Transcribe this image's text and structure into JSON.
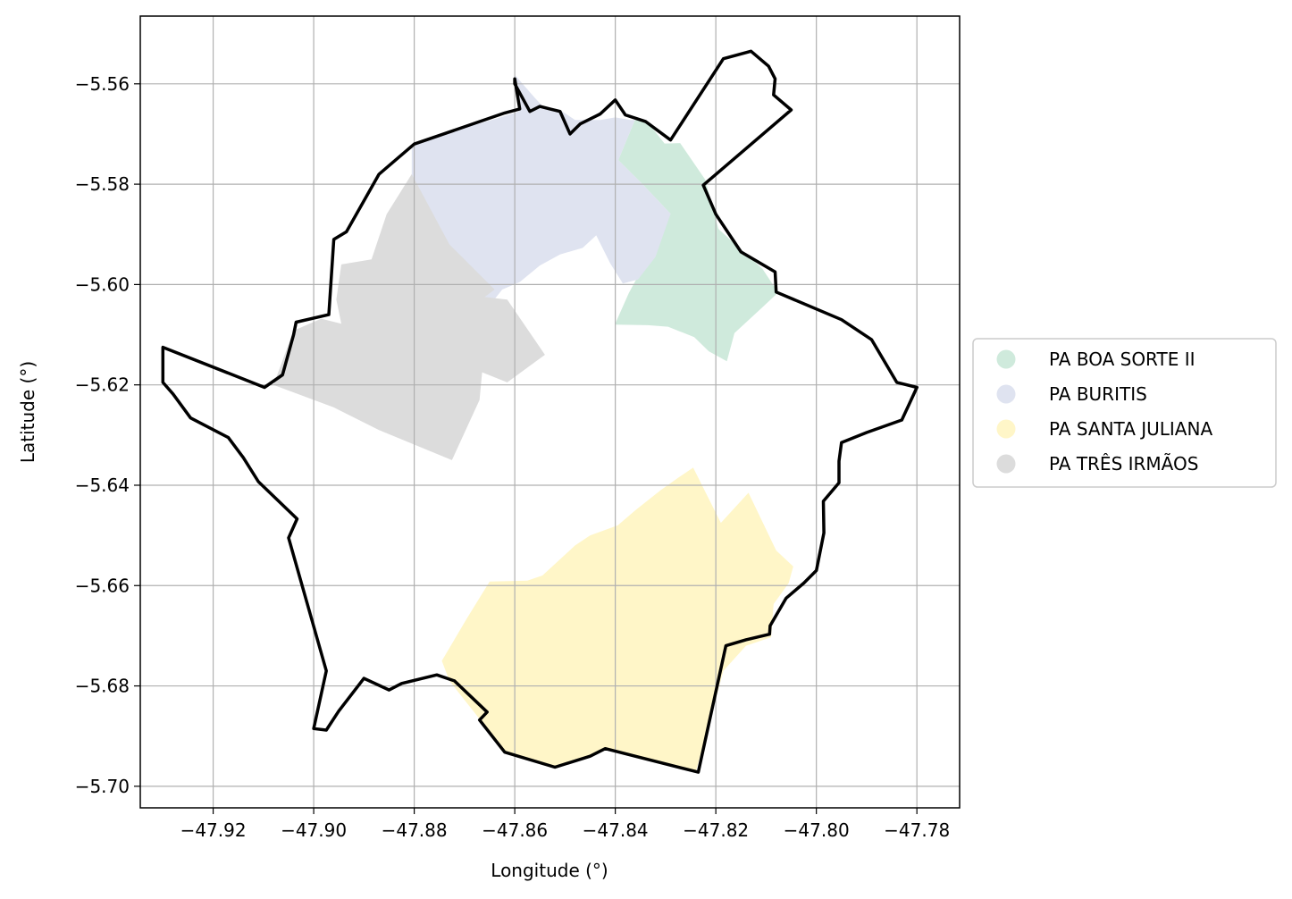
{
  "chart_data": {
    "type": "map",
    "xlabel": "Longitude (°)",
    "ylabel": "Latitude (°)",
    "xlim": [
      -47.9345,
      -47.7715
    ],
    "ylim": [
      -5.7043,
      -5.5465
    ],
    "grid": true,
    "legend_placement": "center-left outside",
    "x_ticks": [
      {
        "value": -47.92,
        "label": "−47.92"
      },
      {
        "value": -47.9,
        "label": "−47.90"
      },
      {
        "value": -47.88,
        "label": "−47.88"
      },
      {
        "value": -47.86,
        "label": "−47.86"
      },
      {
        "value": -47.84,
        "label": "−47.84"
      },
      {
        "value": -47.82,
        "label": "−47.82"
      },
      {
        "value": -47.8,
        "label": "−47.80"
      },
      {
        "value": -47.78,
        "label": "−47.78"
      }
    ],
    "y_ticks": [
      {
        "value": -5.56,
        "label": "−5.56"
      },
      {
        "value": -5.58,
        "label": "−5.58"
      },
      {
        "value": -5.6,
        "label": "−5.60"
      },
      {
        "value": -5.62,
        "label": "−5.62"
      },
      {
        "value": -5.64,
        "label": "−5.64"
      },
      {
        "value": -5.66,
        "label": "−5.66"
      },
      {
        "value": -5.68,
        "label": "−5.68"
      },
      {
        "value": -5.7,
        "label": "−5.70"
      }
    ],
    "series": [
      {
        "name": "PA BOA SORTE II",
        "color": "#cfeadc",
        "polygon": [
          [
            -47.8394,
            -5.5752
          ],
          [
            -47.8361,
            -5.5672
          ],
          [
            -47.8336,
            -5.5676
          ],
          [
            -47.8302,
            -5.5719
          ],
          [
            -47.8271,
            -5.5718
          ],
          [
            -47.8221,
            -5.5791
          ],
          [
            -47.8195,
            -5.5889
          ],
          [
            -47.8107,
            -5.5969
          ],
          [
            -47.8076,
            -5.6016
          ],
          [
            -47.811,
            -5.6048
          ],
          [
            -47.8163,
            -5.6097
          ],
          [
            -47.8178,
            -5.6153
          ],
          [
            -47.8214,
            -5.6133
          ],
          [
            -47.8243,
            -5.6105
          ],
          [
            -47.8295,
            -5.6084
          ],
          [
            -47.8335,
            -5.6081
          ],
          [
            -47.8401,
            -5.608
          ],
          [
            -47.8373,
            -5.6017
          ],
          [
            -47.8345,
            -5.5965
          ],
          [
            -47.8324,
            -5.592
          ],
          [
            -47.829,
            -5.5859
          ],
          [
            -47.8343,
            -5.5803
          ]
        ]
      },
      {
        "name": "PA BURITIS",
        "color": "#dfe3f0",
        "polygon": [
          [
            -47.8805,
            -5.5722
          ],
          [
            -47.8746,
            -5.5701
          ],
          [
            -47.8688,
            -5.5684
          ],
          [
            -47.8632,
            -5.5668
          ],
          [
            -47.8592,
            -5.5655
          ],
          [
            -47.86,
            -5.5582
          ],
          [
            -47.856,
            -5.5628
          ],
          [
            -47.8542,
            -5.5647
          ],
          [
            -47.851,
            -5.5652
          ],
          [
            -47.848,
            -5.5672
          ],
          [
            -47.843,
            -5.5672
          ],
          [
            -47.84,
            -5.5667
          ],
          [
            -47.837,
            -5.5672
          ],
          [
            -47.8361,
            -5.5672
          ],
          [
            -47.8394,
            -5.5752
          ],
          [
            -47.8343,
            -5.5803
          ],
          [
            -47.829,
            -5.5859
          ],
          [
            -47.832,
            -5.5945
          ],
          [
            -47.8355,
            -5.599
          ],
          [
            -47.8385,
            -5.5998
          ],
          [
            -47.841,
            -5.5958
          ],
          [
            -47.8438,
            -5.5902
          ],
          [
            -47.8465,
            -5.5927
          ],
          [
            -47.851,
            -5.594
          ],
          [
            -47.855,
            -5.5962
          ],
          [
            -47.859,
            -5.5995
          ],
          [
            -47.8625,
            -5.601
          ],
          [
            -47.8655,
            -5.6048
          ],
          [
            -47.872,
            -5.5935
          ],
          [
            -47.8805,
            -5.5815
          ]
        ]
      },
      {
        "name": "PA SANTA JULIANA",
        "color": "#fff6c8",
        "polygon": [
          [
            -47.8745,
            -5.675
          ],
          [
            -47.873,
            -5.679
          ],
          [
            -47.8662,
            -5.6876
          ],
          [
            -47.8618,
            -5.693
          ],
          [
            -47.8515,
            -5.6962
          ],
          [
            -47.8418,
            -5.6925
          ],
          [
            -47.824,
            -5.6972
          ],
          [
            -47.8185,
            -5.677
          ],
          [
            -47.814,
            -5.672
          ],
          [
            -47.809,
            -5.6703
          ],
          [
            -47.8085,
            -5.6637
          ],
          [
            -47.8055,
            -5.6595
          ],
          [
            -47.8046,
            -5.6562
          ],
          [
            -47.808,
            -5.653
          ],
          [
            -47.8135,
            -5.6415
          ],
          [
            -47.819,
            -5.6475
          ],
          [
            -47.8245,
            -5.6365
          ],
          [
            -47.8275,
            -5.6385
          ],
          [
            -47.831,
            -5.641
          ],
          [
            -47.836,
            -5.645
          ],
          [
            -47.8395,
            -5.648
          ],
          [
            -47.845,
            -5.65
          ],
          [
            -47.848,
            -5.652
          ],
          [
            -47.8545,
            -5.658
          ],
          [
            -47.8575,
            -5.659
          ],
          [
            -47.865,
            -5.6592
          ],
          [
            -47.8695,
            -5.6665
          ]
        ]
      },
      {
        "name": "PA TRÊS IRMÃOS",
        "color": "#dcdcdc",
        "polygon": [
          [
            -47.8805,
            -5.578
          ],
          [
            -47.8855,
            -5.586
          ],
          [
            -47.8885,
            -5.595
          ],
          [
            -47.8945,
            -5.596
          ],
          [
            -47.8955,
            -5.603
          ],
          [
            -47.8945,
            -5.6078
          ],
          [
            -47.8985,
            -5.6068
          ],
          [
            -47.904,
            -5.6092
          ],
          [
            -47.908,
            -5.62
          ],
          [
            -47.896,
            -5.6245
          ],
          [
            -47.887,
            -5.629
          ],
          [
            -47.8725,
            -5.635
          ],
          [
            -47.867,
            -5.623
          ],
          [
            -47.8665,
            -5.6175
          ],
          [
            -47.8615,
            -5.6195
          ],
          [
            -47.854,
            -5.614
          ],
          [
            -47.8615,
            -5.603
          ],
          [
            -47.866,
            -5.6025
          ],
          [
            -47.864,
            -5.601
          ],
          [
            -47.873,
            -5.592
          ]
        ]
      }
    ],
    "outline": {
      "color": "#000000",
      "polygon": [
        [
          -47.9062,
          -5.618
        ],
        [
          -47.9098,
          -5.6205
        ],
        [
          -47.93,
          -5.6125
        ],
        [
          -47.93,
          -5.6195
        ],
        [
          -47.928,
          -5.6218
        ],
        [
          -47.9245,
          -5.6266
        ],
        [
          -47.917,
          -5.6305
        ],
        [
          -47.914,
          -5.6345
        ],
        [
          -47.911,
          -5.6393
        ],
        [
          -47.9033,
          -5.6467
        ],
        [
          -47.905,
          -5.6505
        ],
        [
          -47.904,
          -5.654
        ],
        [
          -47.8975,
          -5.677
        ],
        [
          -47.9,
          -5.6885
        ],
        [
          -47.8975,
          -5.6888
        ],
        [
          -47.895,
          -5.685
        ],
        [
          -47.89,
          -5.6785
        ],
        [
          -47.885,
          -5.6808
        ],
        [
          -47.8825,
          -5.6795
        ],
        [
          -47.8755,
          -5.6778
        ],
        [
          -47.872,
          -5.679
        ],
        [
          -47.8655,
          -5.6852
        ],
        [
          -47.867,
          -5.6868
        ],
        [
          -47.862,
          -5.6932
        ],
        [
          -47.852,
          -5.6962
        ],
        [
          -47.845,
          -5.694
        ],
        [
          -47.842,
          -5.6925
        ],
        [
          -47.8235,
          -5.6972
        ],
        [
          -47.818,
          -5.672
        ],
        [
          -47.814,
          -5.6708
        ],
        [
          -47.8093,
          -5.6697
        ],
        [
          -47.8092,
          -5.668
        ],
        [
          -47.806,
          -5.6625
        ],
        [
          -47.8025,
          -5.6595
        ],
        [
          -47.8,
          -5.657
        ],
        [
          -47.7985,
          -5.6495
        ],
        [
          -47.7986,
          -5.6432
        ],
        [
          -47.7955,
          -5.6395
        ],
        [
          -47.7955,
          -5.6352
        ],
        [
          -47.795,
          -5.6315
        ],
        [
          -47.79,
          -5.6295
        ],
        [
          -47.783,
          -5.627
        ],
        [
          -47.78,
          -5.6205
        ],
        [
          -47.784,
          -5.6195
        ],
        [
          -47.789,
          -5.611
        ],
        [
          -47.795,
          -5.607
        ],
        [
          -47.808,
          -5.6015
        ],
        [
          -47.8082,
          -5.5975
        ],
        [
          -47.815,
          -5.5935
        ],
        [
          -47.82,
          -5.586
        ],
        [
          -47.8225,
          -5.5802
        ],
        [
          -47.805,
          -5.5652
        ],
        [
          -47.8085,
          -5.5622
        ],
        [
          -47.8082,
          -5.559
        ],
        [
          -47.8095,
          -5.5565
        ],
        [
          -47.813,
          -5.5535
        ],
        [
          -47.8185,
          -5.555
        ],
        [
          -47.829,
          -5.5712
        ],
        [
          -47.834,
          -5.5675
        ],
        [
          -47.838,
          -5.5662
        ],
        [
          -47.84,
          -5.5632
        ],
        [
          -47.843,
          -5.566
        ],
        [
          -47.847,
          -5.568
        ],
        [
          -47.849,
          -5.57
        ],
        [
          -47.851,
          -5.5655
        ],
        [
          -47.853,
          -5.565
        ],
        [
          -47.855,
          -5.5645
        ],
        [
          -47.857,
          -5.5655
        ],
        [
          -47.86,
          -5.56
        ],
        [
          -47.86,
          -5.559
        ],
        [
          -47.859,
          -5.565
        ],
        [
          -47.862,
          -5.5658
        ],
        [
          -47.88,
          -5.572
        ],
        [
          -47.887,
          -5.578
        ],
        [
          -47.8935,
          -5.5895
        ],
        [
          -47.896,
          -5.591
        ],
        [
          -47.897,
          -5.606
        ],
        [
          -47.9035,
          -5.6075
        ],
        [
          -47.904,
          -5.61
        ],
        [
          -47.9062,
          -5.618
        ]
      ]
    }
  }
}
